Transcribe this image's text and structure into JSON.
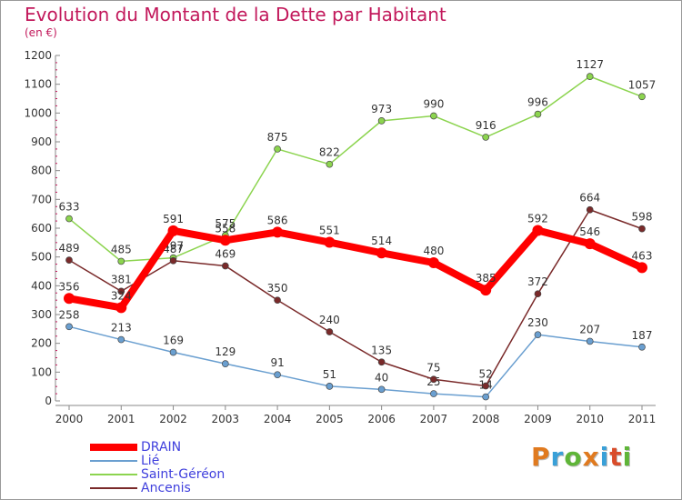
{
  "title": "Evolution du Montant de la Dette par Habitant",
  "unit_label": "(en €)",
  "logo_text": "Proxiti",
  "colors": {
    "title": "#c2185b",
    "axis": "#888888",
    "legend_text": "#4040dd",
    "logo": [
      "#e07a1f",
      "#39a0d8",
      "#5fb538",
      "#e07a1f",
      "#39a0d8",
      "#d94c2a",
      "#5fb538"
    ]
  },
  "chart_data": {
    "type": "line",
    "title": "Evolution du Montant de la Dette par Habitant",
    "ylabel": "(en €)",
    "xlabel": "",
    "categories": [
      "2000",
      "2001",
      "2002",
      "2003",
      "2004",
      "2005",
      "2006",
      "2007",
      "2008",
      "2009",
      "2010",
      "2011"
    ],
    "ylim": [
      0,
      1200
    ],
    "yticks": [
      0,
      100,
      200,
      300,
      400,
      500,
      600,
      700,
      800,
      900,
      1000,
      1100,
      1200
    ],
    "grid": false,
    "legend_position": "bottom-left",
    "series": [
      {
        "name": "Saint-Géréon",
        "color": "#8cd44f",
        "values": [
          633,
          485,
          497,
          575,
          875,
          822,
          973,
          990,
          916,
          996,
          1127,
          1057
        ]
      },
      {
        "name": "Lié",
        "color": "#6a9fd0",
        "values": [
          258,
          213,
          169,
          129,
          91,
          51,
          40,
          25,
          14,
          230,
          207,
          187
        ]
      },
      {
        "name": "Ancenis",
        "color": "#7a2a2a",
        "values": [
          489,
          381,
          487,
          469,
          350,
          240,
          135,
          75,
          52,
          372,
          664,
          598
        ]
      },
      {
        "name": "DRAIN",
        "color": "#ff0000",
        "values": [
          356,
          324,
          591,
          558,
          586,
          551,
          514,
          480,
          385,
          592,
          546,
          463
        ]
      }
    ]
  }
}
